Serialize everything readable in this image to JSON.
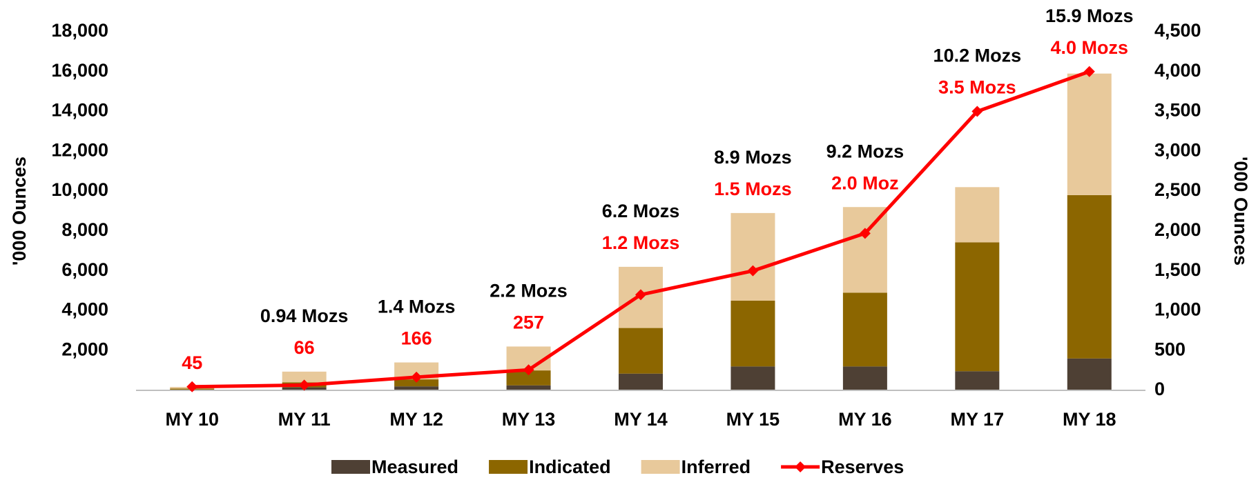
{
  "chart_data": {
    "type": "bar",
    "stacked": true,
    "categories": [
      "MY 10",
      "MY 11",
      "MY 12",
      "MY 13",
      "MY 14",
      "MY 15",
      "MY 16",
      "MY 17",
      "MY 18"
    ],
    "series": [
      {
        "name": "Measured",
        "color": "#4e4034",
        "values": [
          30,
          150,
          200,
          250,
          840,
          1200,
          1200,
          960,
          1600
        ]
      },
      {
        "name": "Indicated",
        "color": "#8c6600",
        "values": [
          60,
          250,
          350,
          750,
          2290,
          3300,
          3700,
          6470,
          8200
        ]
      },
      {
        "name": "Inferred",
        "color": "#e8c99b",
        "values": [
          80,
          540,
          850,
          1200,
          3070,
          4400,
          4300,
          2770,
          6100
        ]
      },
      {
        "name": "Reserves",
        "type": "line",
        "axis": "y2",
        "color": "#ff0000",
        "values": [
          45,
          66,
          166,
          257,
          1200,
          1500,
          1970,
          3500,
          4000
        ],
        "value_labels": [
          "45",
          "66",
          "166",
          "257",
          "1.2 Mozs",
          "1.5 Mozs",
          "2.0 Moz",
          "3.5 Mozs",
          "4.0 Mozs"
        ]
      }
    ],
    "total_labels": [
      null,
      "0.94 Mozs",
      "1.4 Mozs",
      "2.2 Mozs",
      "6.2 Mozs",
      "8.9 Mozs",
      "9.2 Mozs",
      "10.2 Mozs",
      "15.9 Mozs"
    ],
    "ylabel": "'000 Ounces",
    "y2label": "'000 Ounces",
    "ylim": [
      0,
      18000
    ],
    "yticks": [
      {
        "value": 2000,
        "label": "2,000"
      },
      {
        "value": 4000,
        "label": "4,000"
      },
      {
        "value": 6000,
        "label": "6,000"
      },
      {
        "value": 8000,
        "label": "8,000"
      },
      {
        "value": 10000,
        "label": "10,000"
      },
      {
        "value": 12000,
        "label": "12,000"
      },
      {
        "value": 14000,
        "label": "14,000"
      },
      {
        "value": 16000,
        "label": "16,000"
      },
      {
        "value": 18000,
        "label": "18,000"
      }
    ],
    "y2lim": [
      0,
      4500
    ],
    "y2ticks": [
      0,
      500,
      {
        "value": 1000,
        "label": "1,000"
      },
      {
        "value": 1500,
        "label": "1,500"
      },
      {
        "value": 2000,
        "label": "2,000"
      },
      {
        "value": 2500,
        "label": "2,500"
      },
      {
        "value": 3000,
        "label": "3,000"
      },
      {
        "value": 3500,
        "label": "3,500"
      },
      {
        "value": 4000,
        "label": "4,000"
      },
      {
        "value": 4500,
        "label": "4,500"
      }
    ],
    "grid": false,
    "legend": "bottom"
  }
}
